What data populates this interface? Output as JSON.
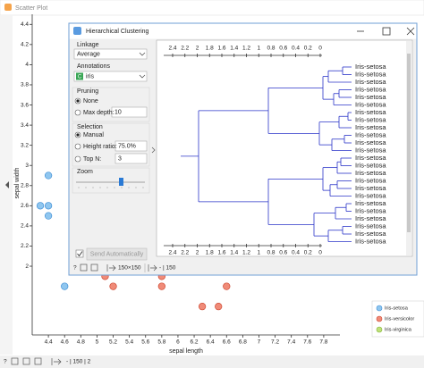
{
  "scatter_window": {
    "title": "Scatter Plot",
    "y_axis_label": "sepal width",
    "x_axis_label": "sepal length",
    "xlim": [
      4.2,
      8
    ],
    "ylim": [
      1.3,
      4.5
    ],
    "xticks": [
      4.4,
      4.6,
      4.8,
      5,
      5.2,
      5.4,
      5.6,
      5.8,
      6,
      6.2,
      6.4,
      6.6,
      6.8,
      7,
      7.2,
      7.4,
      7.6,
      7.8
    ],
    "yticks": [
      2,
      2.2,
      2.4,
      2.6,
      2.8,
      3,
      3.2,
      3.4,
      3.6,
      3.8,
      4,
      4.2,
      4.4
    ],
    "series": [
      {
        "name": "Iris-setosa",
        "color": "#8fc6ef",
        "stroke": "#3f8fd6",
        "x": [
          4.4,
          4.3,
          4.4,
          4.4,
          4.6
        ],
        "y": [
          2.9,
          2.6,
          2.6,
          2.5,
          1.8
        ]
      },
      {
        "name": "Iris-versicolor",
        "color": "#f08b78",
        "stroke": "#cf4a34",
        "x": [
          5.1,
          5.2,
          5.8,
          5.8,
          6.3,
          6.5,
          6.6
        ],
        "y": [
          1.9,
          1.8,
          1.9,
          1.8,
          1.6,
          1.6,
          1.8
        ]
      },
      {
        "name": "Iris-virginica",
        "color": "#bfe07a",
        "stroke": "#86b83a",
        "x": [],
        "y": []
      }
    ],
    "status": "- | 150 | 2"
  },
  "dialog": {
    "title": "Hierarchical Clustering",
    "linkage": {
      "label": "Linkage",
      "value": "Average"
    },
    "annotations": {
      "label": "Annotations",
      "icon": "C",
      "value": "iris"
    },
    "pruning": {
      "label": "Pruning",
      "options": [
        "None",
        "Max depth:"
      ],
      "selected": 0,
      "max_depth": 10
    },
    "selection": {
      "label": "Selection",
      "options": [
        "Manual",
        "Height ratio:",
        "Top N:"
      ],
      "selected": 0,
      "height_ratio": "75.0%",
      "top_n": 3
    },
    "zoom": {
      "label": "Zoom"
    },
    "send": {
      "label": "Send Automatically",
      "checked": true
    },
    "status": {
      "input": "150×150",
      "output": "- | 150"
    },
    "dendrogram": {
      "ticks": [
        2.4,
        2.2,
        2,
        1.8,
        1.6,
        1.4,
        1.2,
        1,
        0.8,
        0.6,
        0.4,
        0.2,
        0
      ],
      "leaves": [
        "Iris-setosa",
        "Iris-setosa",
        "Iris-setosa",
        "Iris-setosa",
        "Iris-setosa",
        "Iris-setosa",
        "Iris-setosa",
        "Iris-setosa",
        "Iris-setosa",
        "Iris-setosa",
        "Iris-setosa",
        "Iris-setosa",
        "Iris-setosa",
        "Iris-setosa",
        "Iris-setosa",
        "Iris-setosa",
        "Iris-setosa",
        "Iris-setosa",
        "Iris-setosa",
        "Iris-setosa",
        "Iris-setosa",
        "Iris-setosa",
        "Iris-setosa",
        "Iris-setosa"
      ]
    }
  }
}
